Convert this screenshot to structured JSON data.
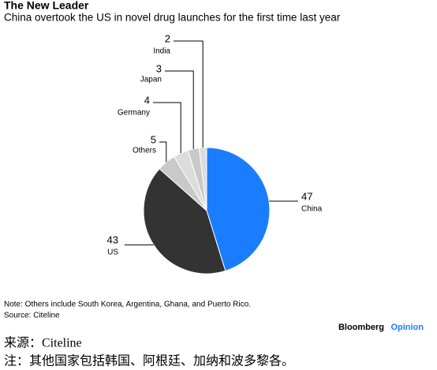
{
  "chart_data": {
    "type": "pie",
    "title": "The New Leader",
    "subtitle": "China overtook the US in novel drug launches for the first time last year",
    "categories": [
      "China",
      "US",
      "Others",
      "Germany",
      "Japan",
      "India"
    ],
    "values": [
      47,
      43,
      5,
      4,
      3,
      2
    ],
    "colors": [
      "#1a7dff",
      "#333333",
      "#c9c9c9",
      "#dcdcdc",
      "#c9c9c9",
      "#dcdcdc"
    ],
    "note": "Note: Others include South Korea, Argentina, Ghana, and Puerto Rico.",
    "source": "Source: Citeline",
    "brand": "Bloomberg",
    "brand_section": "Opinion",
    "source_zh": "来源：Citeline",
    "note_zh": "注：其他国家包括韩国、阿根廷、加纳和波多黎各。"
  }
}
